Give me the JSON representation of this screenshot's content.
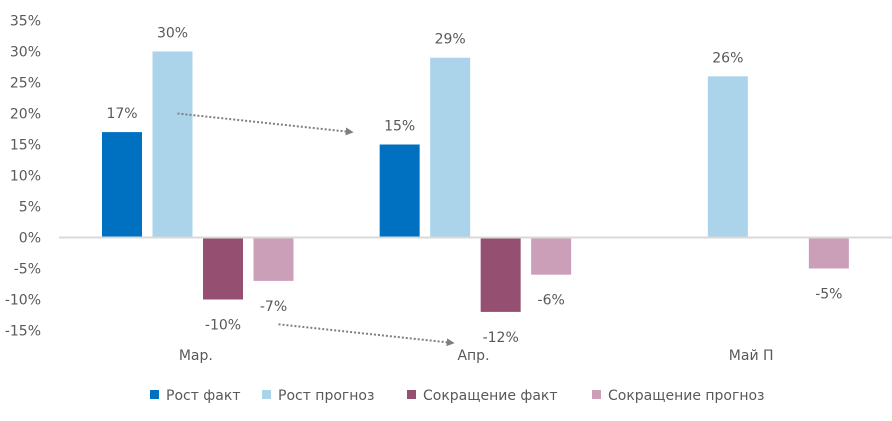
{
  "chart_data": {
    "type": "bar",
    "title": "",
    "xlabel": "",
    "ylabel": "",
    "categories": [
      "Мар.",
      "Апр.",
      "Май П"
    ],
    "series": [
      {
        "name": "Рост факт",
        "color": "#0070C0",
        "values": [
          17,
          15,
          null
        ]
      },
      {
        "name": "Рост прогноз",
        "color": "#ABD4EA",
        "values": [
          30,
          29,
          26
        ]
      },
      {
        "name": "Сокращение факт",
        "color": "#944F71",
        "values": [
          -10,
          -12,
          null
        ]
      },
      {
        "name": "Сокращение прогноз",
        "color": "#CC9FB8",
        "values": [
          -7,
          -6,
          -5
        ]
      }
    ],
    "data_labels": [
      [
        "17%",
        "15%",
        ""
      ],
      [
        "30%",
        "29%",
        "26%"
      ],
      [
        "-10%",
        "-12%",
        ""
      ],
      [
        "-7%",
        "-6%",
        "-5%"
      ]
    ],
    "ylim": [
      -15,
      35
    ],
    "yticks": [
      35,
      30,
      25,
      20,
      15,
      10,
      5,
      0,
      -5,
      -10,
      -15
    ],
    "ytick_labels": [
      "35%",
      "30%",
      "25%",
      "20%",
      "15%",
      "10%",
      "5%",
      "0%",
      "-5%",
      "-10%",
      "-15%"
    ],
    "grid": false,
    "legend_position": "bottom",
    "annotations": [
      {
        "type": "dotted-arrow",
        "from": [
          "Мар.",
          "Рост прогноз",
          20
        ],
        "to": [
          "Апр.",
          "Рост факт",
          17
        ]
      },
      {
        "type": "dotted-arrow",
        "from": [
          "Мар.",
          "Сокращение прогноз",
          -14
        ],
        "to": [
          "Апр.",
          "Сокращение факт",
          -17
        ]
      }
    ]
  }
}
